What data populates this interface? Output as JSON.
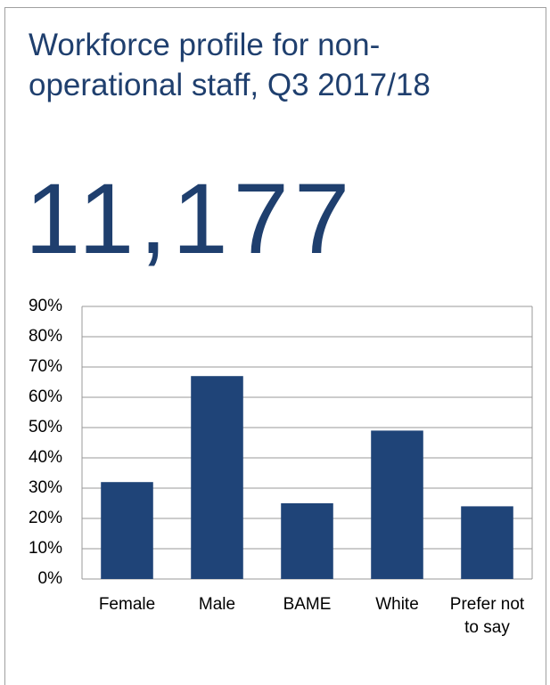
{
  "chart_data": {
    "type": "bar",
    "title": "Workforce profile for non-operational staff, Q3 2017/18",
    "annotation": "11,177",
    "categories": [
      "Female",
      "Male",
      "BAME",
      "White",
      "Prefer not to say"
    ],
    "values": [
      32,
      67,
      25,
      49,
      24
    ],
    "color": "#1f4478",
    "ylim": [
      0,
      90
    ],
    "yticks": [
      {
        "value": 0,
        "label": "0%"
      },
      {
        "value": 10,
        "label": "10%"
      },
      {
        "value": 20,
        "label": "20%"
      },
      {
        "value": 30,
        "label": "30%"
      },
      {
        "value": 40,
        "label": "40%"
      },
      {
        "value": 50,
        "label": "50%"
      },
      {
        "value": 60,
        "label": "60%"
      },
      {
        "value": 70,
        "label": "70%"
      },
      {
        "value": 80,
        "label": "80%"
      },
      {
        "value": 90,
        "label": "90%"
      }
    ],
    "grid": true
  }
}
